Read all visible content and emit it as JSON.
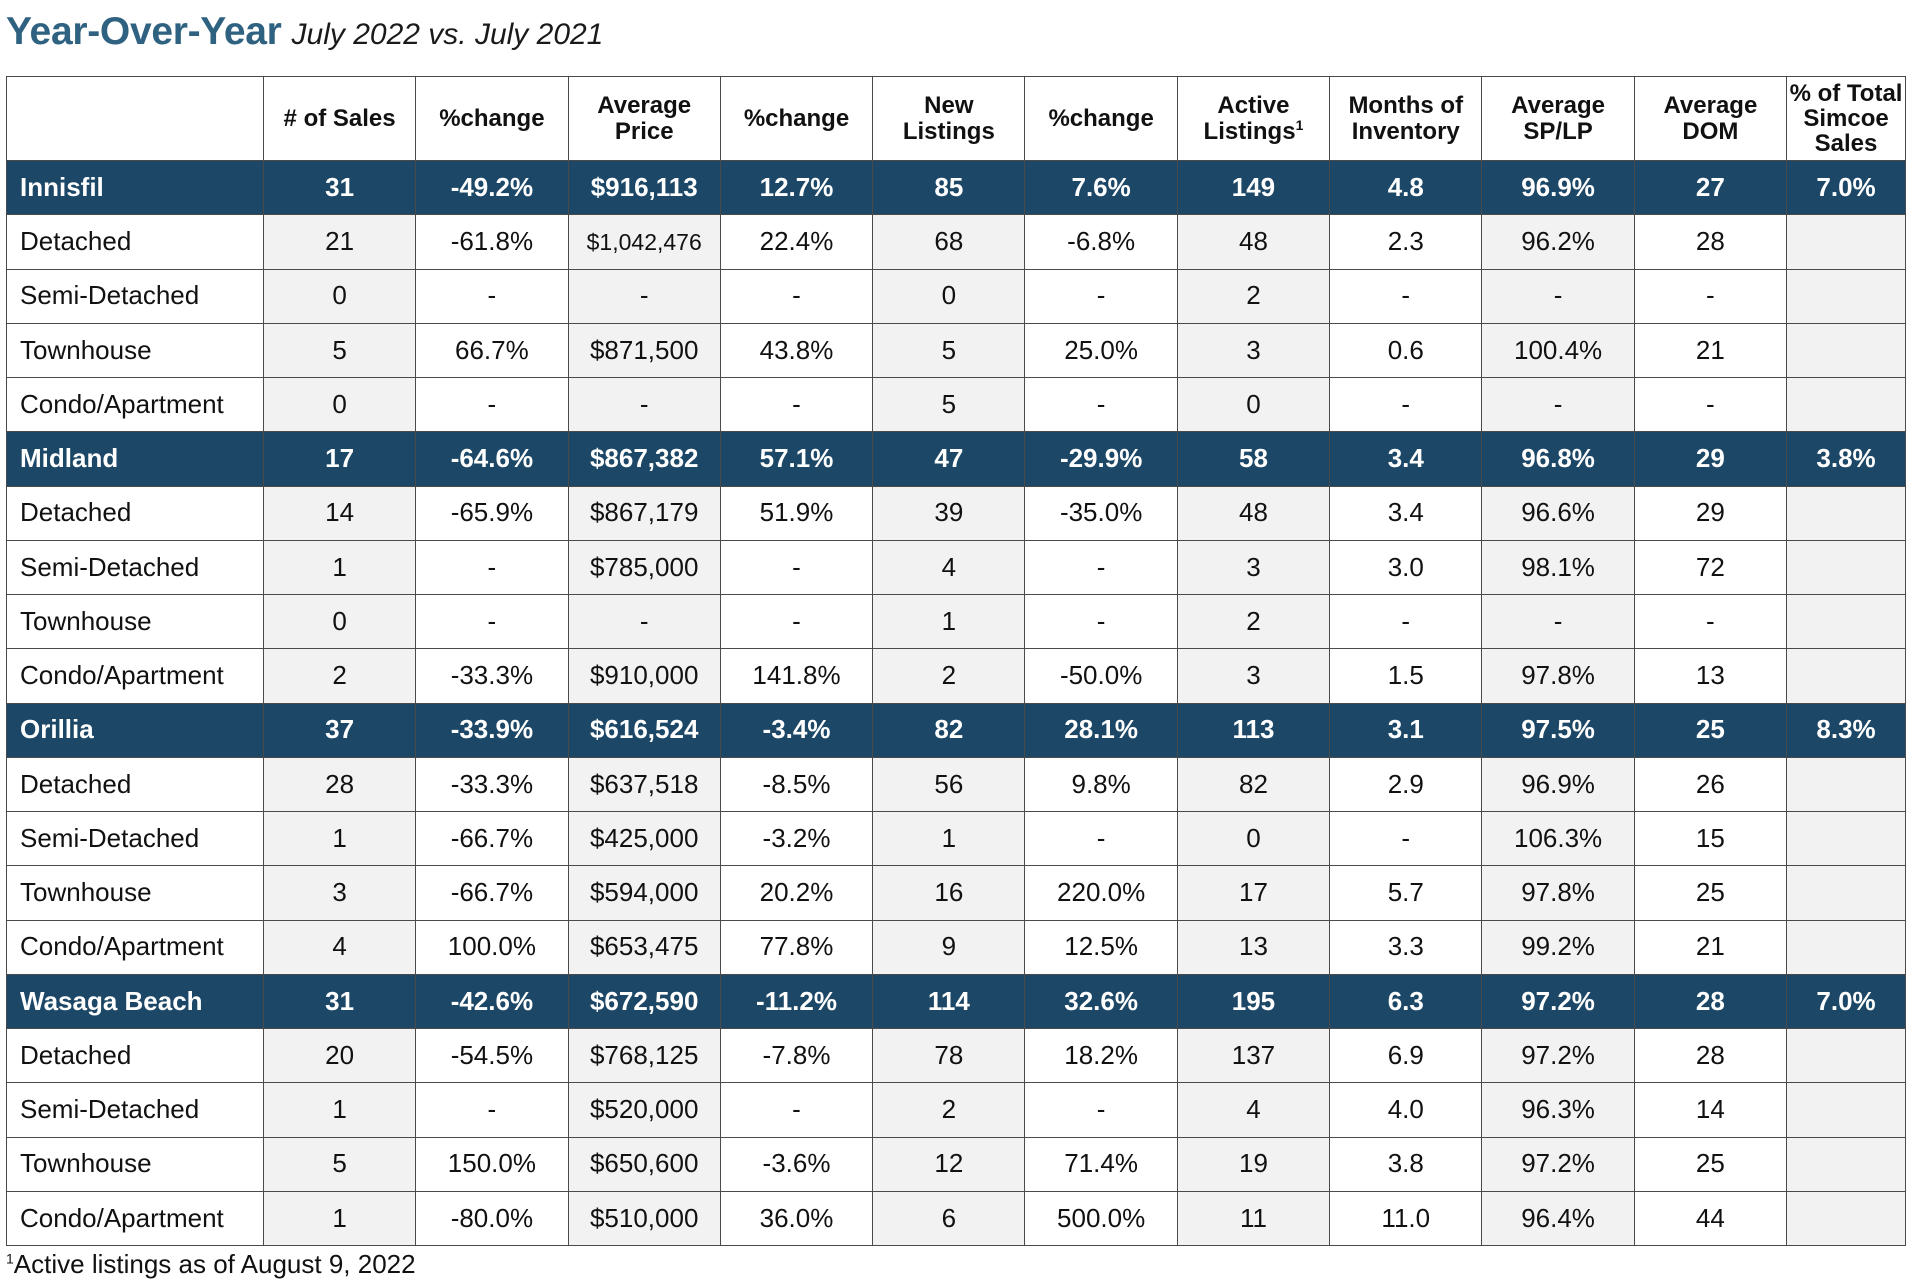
{
  "title": {
    "main": "Year-Over-Year",
    "sub": "July 2022 vs. July 2021"
  },
  "columns": [
    {
      "lines": [
        ""
      ]
    },
    {
      "lines": [
        "# of Sales"
      ]
    },
    {
      "lines": [
        "%change"
      ]
    },
    {
      "lines": [
        "Average",
        "Price"
      ]
    },
    {
      "lines": [
        "%change"
      ]
    },
    {
      "lines": [
        "New",
        "Listings"
      ]
    },
    {
      "lines": [
        "%change"
      ]
    },
    {
      "lines": [
        "Active",
        "Listings"
      ],
      "sup": "1"
    },
    {
      "lines": [
        "Months of",
        "Inventory"
      ]
    },
    {
      "lines": [
        "Average",
        "SP/LP"
      ]
    },
    {
      "lines": [
        "Average",
        "DOM"
      ]
    },
    {
      "lines": [
        "% of Total",
        "Simcoe",
        "Sales"
      ]
    }
  ],
  "groups": [
    {
      "row": [
        "Innisfil",
        "31",
        "-49.2%",
        "$916,113",
        "12.7%",
        "85",
        "7.6%",
        "149",
        "4.8",
        "96.9%",
        "27",
        "7.0%"
      ],
      "subs": [
        [
          "Detached",
          "21",
          "-61.8%",
          "$1,042,476",
          "22.4%",
          "68",
          "-6.8%",
          "48",
          "2.3",
          "96.2%",
          "28",
          ""
        ],
        [
          "Semi-Detached",
          "0",
          "-",
          "-",
          "-",
          "0",
          "-",
          "2",
          "-",
          "-",
          "-",
          ""
        ],
        [
          "Townhouse",
          "5",
          "66.7%",
          "$871,500",
          "43.8%",
          "5",
          "25.0%",
          "3",
          "0.6",
          "100.4%",
          "21",
          ""
        ],
        [
          "Condo/Apartment",
          "0",
          "-",
          "-",
          "-",
          "5",
          "-",
          "0",
          "-",
          "-",
          "-",
          ""
        ]
      ]
    },
    {
      "row": [
        "Midland",
        "17",
        "-64.6%",
        "$867,382",
        "57.1%",
        "47",
        "-29.9%",
        "58",
        "3.4",
        "96.8%",
        "29",
        "3.8%"
      ],
      "subs": [
        [
          "Detached",
          "14",
          "-65.9%",
          "$867,179",
          "51.9%",
          "39",
          "-35.0%",
          "48",
          "3.4",
          "96.6%",
          "29",
          ""
        ],
        [
          "Semi-Detached",
          "1",
          "-",
          "$785,000",
          "-",
          "4",
          "-",
          "3",
          "3.0",
          "98.1%",
          "72",
          ""
        ],
        [
          "Townhouse",
          "0",
          "-",
          "-",
          "-",
          "1",
          "-",
          "2",
          "-",
          "-",
          "-",
          ""
        ],
        [
          "Condo/Apartment",
          "2",
          "-33.3%",
          "$910,000",
          "141.8%",
          "2",
          "-50.0%",
          "3",
          "1.5",
          "97.8%",
          "13",
          ""
        ]
      ]
    },
    {
      "row": [
        "Orillia",
        "37",
        "-33.9%",
        "$616,524",
        "-3.4%",
        "82",
        "28.1%",
        "113",
        "3.1",
        "97.5%",
        "25",
        "8.3%"
      ],
      "subs": [
        [
          "Detached",
          "28",
          "-33.3%",
          "$637,518",
          "-8.5%",
          "56",
          "9.8%",
          "82",
          "2.9",
          "96.9%",
          "26",
          ""
        ],
        [
          "Semi-Detached",
          "1",
          "-66.7%",
          "$425,000",
          "-3.2%",
          "1",
          "-",
          "0",
          "-",
          "106.3%",
          "15",
          ""
        ],
        [
          "Townhouse",
          "3",
          "-66.7%",
          "$594,000",
          "20.2%",
          "16",
          "220.0%",
          "17",
          "5.7",
          "97.8%",
          "25",
          ""
        ],
        [
          "Condo/Apartment",
          "4",
          "100.0%",
          "$653,475",
          "77.8%",
          "9",
          "12.5%",
          "13",
          "3.3",
          "99.2%",
          "21",
          ""
        ]
      ]
    },
    {
      "row": [
        "Wasaga Beach",
        "31",
        "-42.6%",
        "$672,590",
        "-11.2%",
        "114",
        "32.6%",
        "195",
        "6.3",
        "97.2%",
        "28",
        "7.0%"
      ],
      "subs": [
        [
          "Detached",
          "20",
          "-54.5%",
          "$768,125",
          "-7.8%",
          "78",
          "18.2%",
          "137",
          "6.9",
          "97.2%",
          "28",
          ""
        ],
        [
          "Semi-Detached",
          "1",
          "-",
          "$520,000",
          "-",
          "2",
          "-",
          "4",
          "4.0",
          "96.3%",
          "14",
          ""
        ],
        [
          "Townhouse",
          "5",
          "150.0%",
          "$650,600",
          "-3.6%",
          "12",
          "71.4%",
          "19",
          "3.8",
          "97.2%",
          "25",
          ""
        ],
        [
          "Condo/Apartment",
          "1",
          "-80.0%",
          "$510,000",
          "36.0%",
          "6",
          "500.0%",
          "11",
          "11.0",
          "96.4%",
          "44",
          ""
        ]
      ]
    }
  ],
  "footnote": {
    "sup": "1",
    "text": "Active listings as of August 9, 2022"
  },
  "colors": {
    "title": "#2f6180",
    "group_row_bg": "#1c4766",
    "alt_cell_bg": "#f2f2f2",
    "border": "#4a4a4a"
  }
}
